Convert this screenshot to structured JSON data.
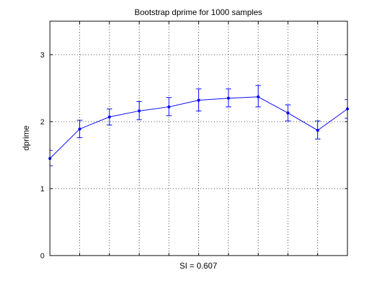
{
  "chart_data": {
    "type": "line",
    "title": "Bootstrap dprime for 1000 samples",
    "xlabel": "SI = 0.607",
    "ylabel": "dprime",
    "xlim": [
      0,
      10
    ],
    "ylim": [
      0,
      3.5
    ],
    "yticks": [
      0,
      1,
      2,
      3
    ],
    "xticks": [
      1,
      2,
      3,
      4,
      5,
      6,
      7,
      8,
      9
    ],
    "grid": true,
    "color": "#0000ff",
    "series": [
      {
        "x": [
          0,
          1,
          2,
          3,
          4,
          5,
          6,
          7,
          8,
          9,
          10
        ],
        "y": [
          1.45,
          1.89,
          2.07,
          2.16,
          2.22,
          2.32,
          2.35,
          2.37,
          2.13,
          1.87,
          2.19
        ],
        "err_low": [
          1.34,
          1.76,
          1.95,
          2.03,
          2.09,
          2.16,
          2.22,
          2.22,
          2.01,
          1.74,
          2.05
        ],
        "err_high": [
          1.57,
          2.02,
          2.19,
          2.3,
          2.36,
          2.49,
          2.49,
          2.54,
          2.25,
          2.01,
          2.33
        ]
      }
    ]
  }
}
